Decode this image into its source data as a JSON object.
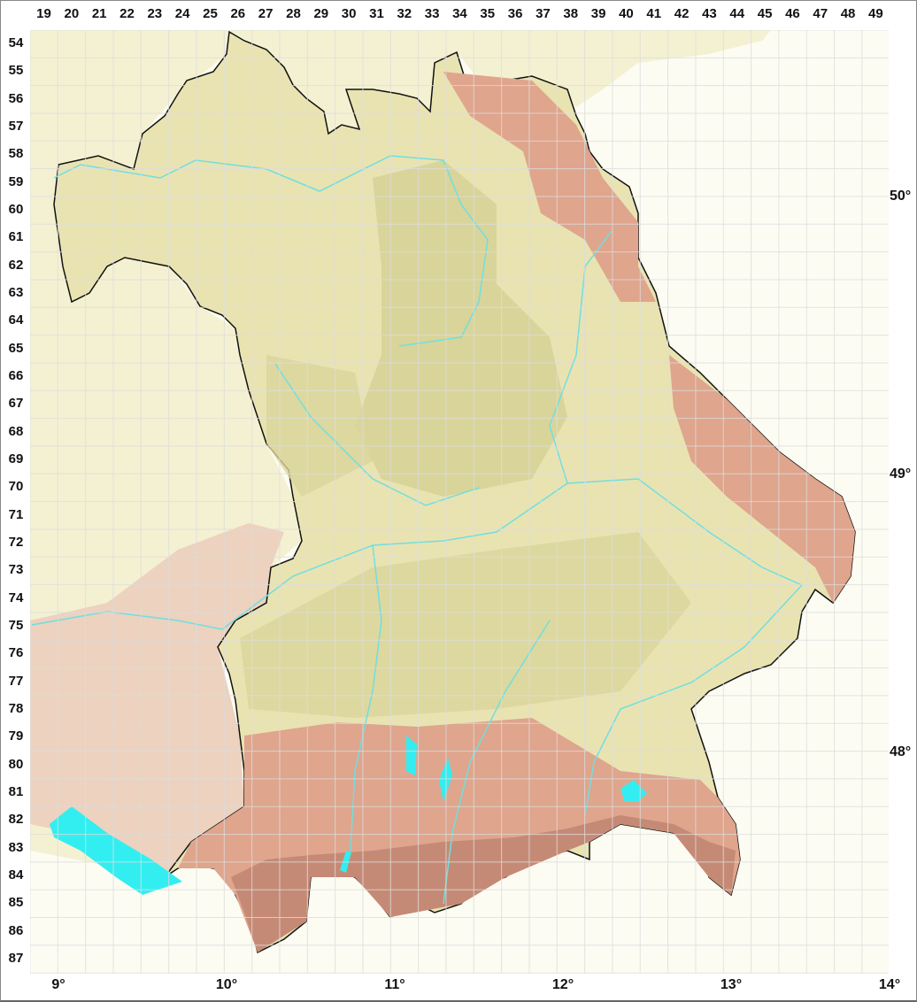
{
  "grid": {
    "columns": [
      "19",
      "20",
      "21",
      "22",
      "23",
      "24",
      "25",
      "26",
      "27",
      "28",
      "29",
      "30",
      "31",
      "32",
      "33",
      "34",
      "35",
      "36",
      "37",
      "38",
      "39",
      "40",
      "41",
      "42",
      "43",
      "44",
      "45",
      "46",
      "47",
      "48",
      "49"
    ],
    "rows": [
      "54",
      "55",
      "56",
      "57",
      "58",
      "59",
      "60",
      "61",
      "62",
      "63",
      "64",
      "65",
      "66",
      "67",
      "68",
      "69",
      "70",
      "71",
      "72",
      "73",
      "74",
      "75",
      "76",
      "77",
      "78",
      "79",
      "80",
      "81",
      "82",
      "83",
      "84",
      "85",
      "86",
      "87"
    ]
  },
  "longitude_labels": [
    "9°",
    "10°",
    "11°",
    "12°",
    "13°",
    "14°"
  ],
  "latitude_labels": [
    "50°",
    "49°",
    "48°"
  ],
  "colors": {
    "background": "#fcfcf3",
    "lowland": "#e9e3b2",
    "upland": "#d9d49a",
    "hills": "#dfa58d",
    "alps": "#c58a76",
    "outside_lowland": "#f4f1d2",
    "outside_hills": "#ecd2bf",
    "water": "#33eef0",
    "river": "#6fdfe0",
    "border": "#111111",
    "grid": "#dddddd"
  }
}
